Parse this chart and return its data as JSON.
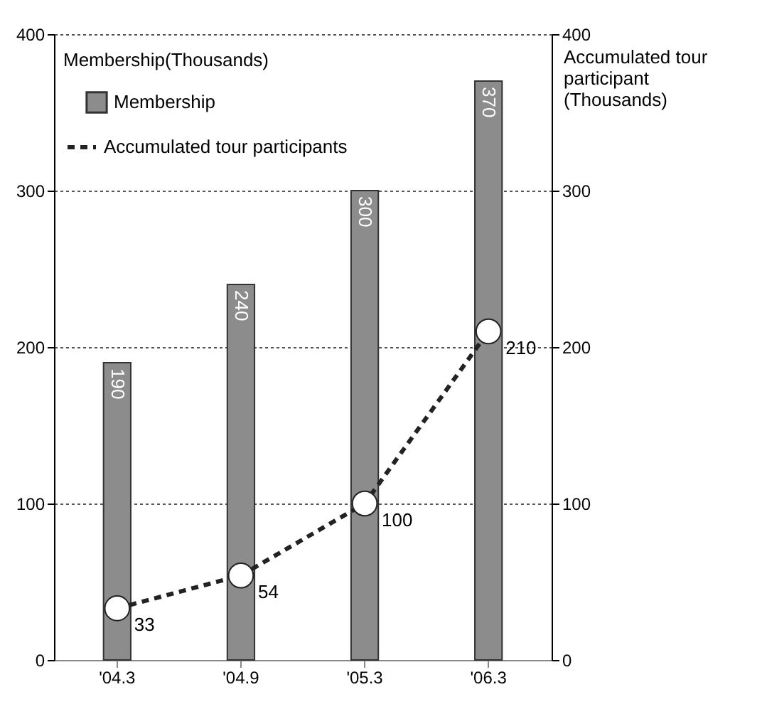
{
  "chart_data": {
    "type": "bar",
    "categories": [
      "'04.3",
      "'04.9",
      "'05.3",
      "'06.3"
    ],
    "series": [
      {
        "name": "Membership",
        "color": "#8c8c8c",
        "values": [
          190,
          240,
          300,
          370
        ]
      },
      {
        "name": "Accumulated tour participants",
        "type": "line",
        "axis": "y2",
        "color": "#222222",
        "values": [
          33,
          54,
          100,
          210
        ]
      }
    ],
    "ylabel": "Membership(Thousands)",
    "y2label": "Accumulated tour participant (Thousands)",
    "ylim": [
      0,
      400
    ],
    "yticks": [
      0,
      100,
      200,
      300,
      400
    ],
    "y2lim": [
      0,
      400
    ],
    "y2ticks": [
      0,
      100,
      200,
      300,
      400
    ],
    "grid": "y",
    "legend": "top left",
    "marker": "circle",
    "line_style": "dashed",
    "data_labels": true
  }
}
